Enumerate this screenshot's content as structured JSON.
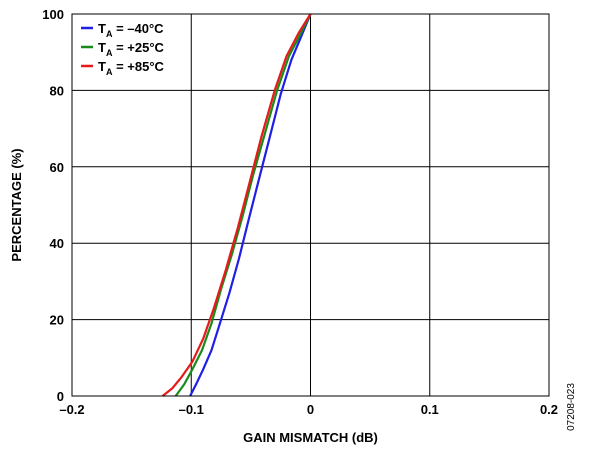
{
  "figure_id": "07208-023",
  "chart_data": {
    "type": "line",
    "xlabel": "GAIN MISMATCH (dB)",
    "ylabel": "PERCENTAGE (%)",
    "xlim": [
      -0.2,
      0.2
    ],
    "ylim": [
      0,
      100
    ],
    "x_ticks": [
      -0.2,
      -0.1,
      0,
      0.1,
      0.2
    ],
    "x_tick_labels": [
      "–0.2",
      "–0.1",
      "0",
      "0.1",
      "0.2"
    ],
    "y_ticks": [
      0,
      20,
      40,
      60,
      80,
      100
    ],
    "y_tick_labels": [
      "0",
      "20",
      "40",
      "60",
      "80",
      "100"
    ],
    "grid": true,
    "legend_position": "top-left",
    "series": [
      {
        "name": "TA = –40°C",
        "legend_main": "T",
        "legend_sub": "A",
        "legend_rest": " = –40°C",
        "color": "#1f1fe6",
        "x": [
          -0.101,
          -0.096,
          -0.09,
          -0.083,
          -0.076,
          -0.068,
          -0.06,
          -0.052,
          -0.043,
          -0.034,
          -0.025,
          -0.016,
          -0.008,
          0.0
        ],
        "y": [
          0,
          3,
          7,
          12,
          19,
          27,
          36,
          46,
          57,
          68,
          79,
          88,
          94,
          100
        ]
      },
      {
        "name": "TA = +25°C",
        "legend_main": "T",
        "legend_sub": "A",
        "legend_rest": " = +25°C",
        "color": "#1a8a1a",
        "x": [
          -0.113,
          -0.106,
          -0.099,
          -0.091,
          -0.083,
          -0.075,
          -0.066,
          -0.057,
          -0.048,
          -0.038,
          -0.028,
          -0.018,
          -0.008,
          0.0
        ],
        "y": [
          0,
          3,
          7,
          12,
          19,
          28,
          37,
          47,
          58,
          69,
          80,
          89,
          95,
          100
        ]
      },
      {
        "name": "TA = +85°C",
        "legend_main": "T",
        "legend_sub": "A",
        "legend_rest": " = +85°C",
        "color": "#e61a1a",
        "x": [
          -0.124,
          -0.116,
          -0.108,
          -0.099,
          -0.09,
          -0.081,
          -0.071,
          -0.061,
          -0.051,
          -0.041,
          -0.03,
          -0.02,
          -0.01,
          0.0
        ],
        "y": [
          0,
          2,
          5,
          9,
          15,
          23,
          33,
          44,
          56,
          68,
          80,
          89,
          95,
          100
        ]
      }
    ]
  }
}
